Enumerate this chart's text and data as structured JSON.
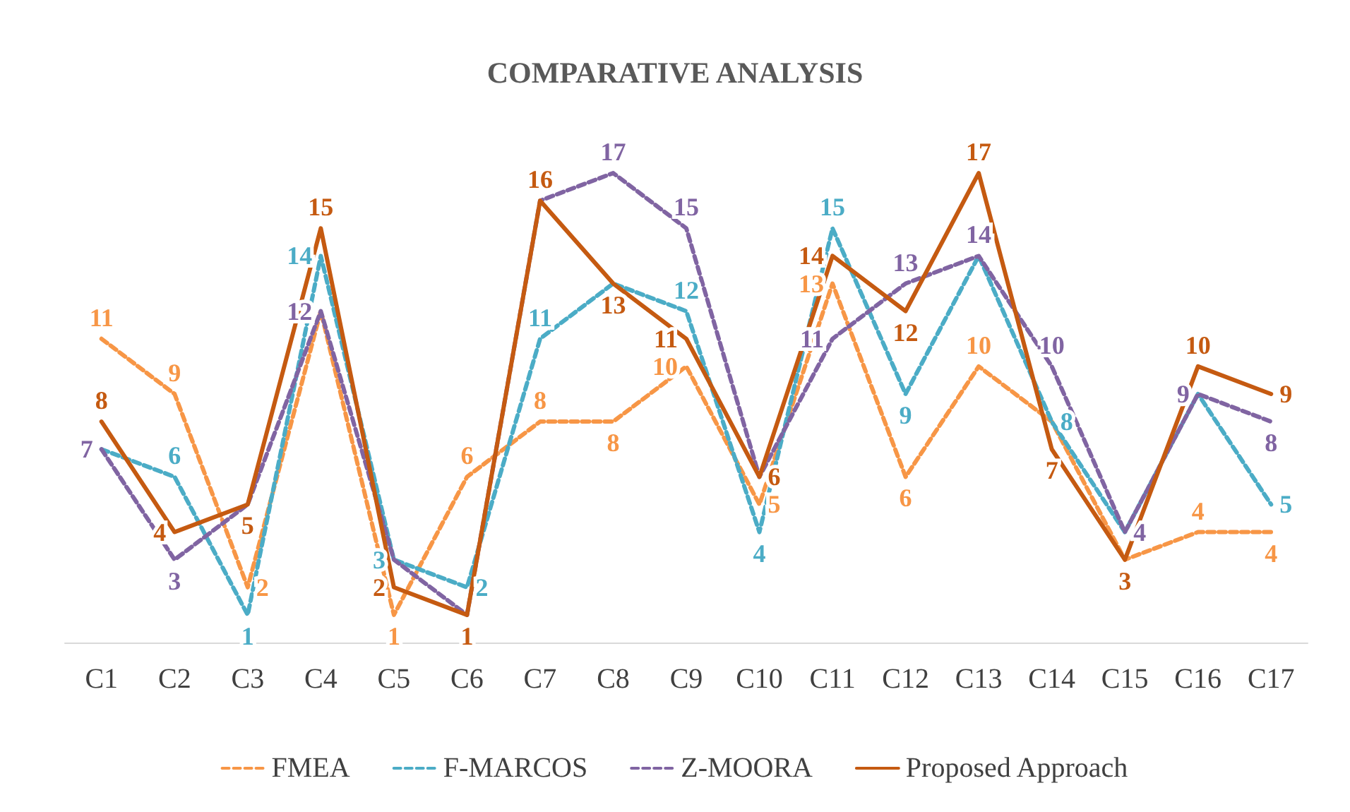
{
  "chart_data": {
    "type": "line",
    "title": "COMPARATIVE ANALYSIS",
    "categories": [
      "C1",
      "C2",
      "C3",
      "C4",
      "C5",
      "C6",
      "C7",
      "C8",
      "C9",
      "C10",
      "C11",
      "C12",
      "C13",
      "C14",
      "C15",
      "C16",
      "C17"
    ],
    "series": [
      {
        "name": "FMEA",
        "color": "#f79646",
        "line_style": "dashed",
        "values": [
          11,
          9,
          2,
          12,
          1,
          6,
          8,
          8,
          10,
          5,
          13,
          6,
          10,
          8,
          3,
          4,
          4
        ],
        "value_labels": [
          "11",
          "9",
          "2",
          null,
          "1",
          "6",
          "8",
          "8",
          "10",
          "5",
          "13",
          "6",
          "10",
          null,
          null,
          "4",
          "4"
        ]
      },
      {
        "name": "F-MARCOS",
        "color": "#4bacc6",
        "line_style": "dashed",
        "values": [
          7,
          6,
          1,
          14,
          3,
          2,
          11,
          13,
          12,
          4,
          15,
          9,
          14,
          8,
          4,
          9,
          5
        ],
        "value_labels": [
          null,
          "6",
          "1",
          "14",
          "3",
          "2",
          "11",
          null,
          "12",
          "4",
          "15",
          "9",
          null,
          "8",
          null,
          null,
          "5"
        ]
      },
      {
        "name": "Z-MOORA",
        "color": "#8064a2",
        "line_style": "dashed",
        "values": [
          7,
          3,
          5,
          12,
          3,
          1,
          16,
          17,
          15,
          6,
          11,
          13,
          14,
          10,
          4,
          9,
          8
        ],
        "value_labels": [
          "7",
          "3",
          null,
          "12",
          null,
          null,
          null,
          "17",
          "15",
          null,
          "11",
          "13",
          "14",
          "10",
          "4",
          "9",
          "8"
        ]
      },
      {
        "name": "Proposed Approach",
        "color": "#c55a11",
        "line_style": "solid",
        "values": [
          8,
          4,
          5,
          15,
          2,
          1,
          16,
          13,
          11,
          6,
          14,
          12,
          17,
          7,
          3,
          10,
          9
        ],
        "value_labels": [
          "8",
          "4",
          "5",
          "15",
          "2",
          "1",
          "16",
          "13",
          "11",
          "6",
          "14",
          "12",
          "17",
          "7",
          "3",
          "10",
          "9"
        ]
      }
    ],
    "legend": "bottom",
    "grid": false,
    "marker": "none"
  }
}
